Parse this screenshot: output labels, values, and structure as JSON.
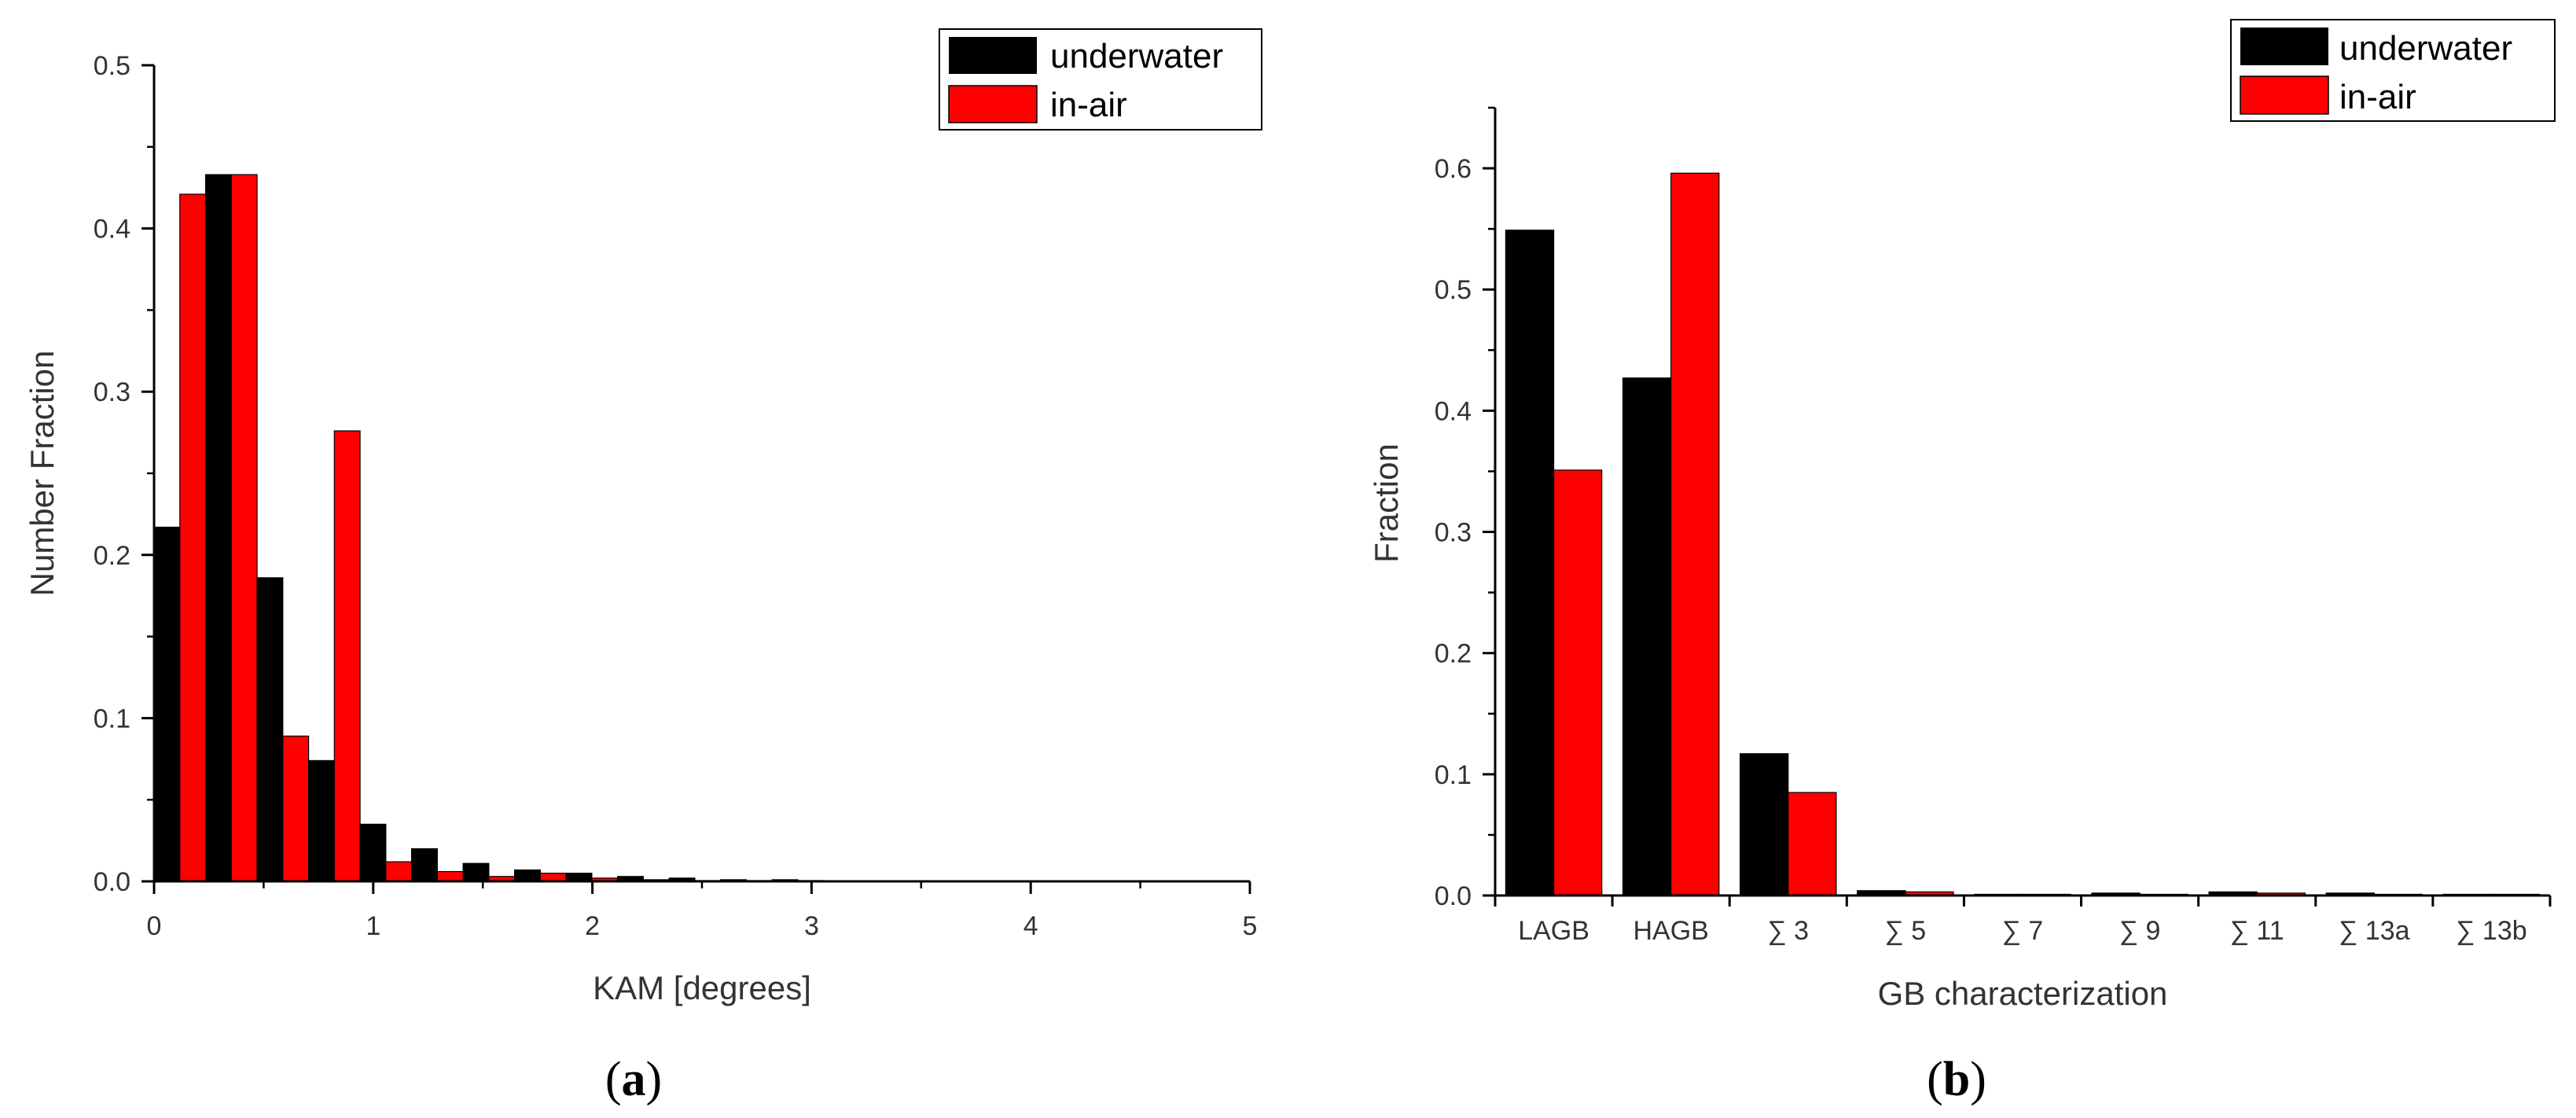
{
  "chart_data": [
    {
      "type": "bar",
      "panel_label": "a",
      "xlabel": "KAM [degrees]",
      "ylabel": "Number Fraction",
      "xlim": [
        0,
        5
      ],
      "ylim": [
        0,
        0.5
      ],
      "xticks": [
        "0",
        "1",
        "2",
        "3",
        "4",
        "5"
      ],
      "yticks": [
        "0.0",
        "0.1",
        "0.2",
        "0.3",
        "0.4",
        "0.5"
      ],
      "bin_width": 0.235,
      "x": [
        0.1175,
        0.3525,
        0.5875,
        0.8225,
        1.0575,
        1.2925,
        1.5275,
        1.7625,
        1.9975,
        2.2325,
        2.4675,
        2.7025,
        2.9375,
        3.1725,
        3.4075,
        3.6425,
        3.8775,
        4.1125,
        4.3475,
        4.5825,
        4.8175
      ],
      "series": [
        {
          "name": "underwater",
          "color": "#000000",
          "values": [
            0.217,
            0.433,
            0.186,
            0.074,
            0.035,
            0.02,
            0.011,
            0.007,
            0.005,
            0.003,
            0.002,
            0.001,
            0.001,
            0,
            0,
            0,
            0,
            0,
            0,
            0,
            0
          ]
        },
        {
          "name": "in-air",
          "color": "#ff0000",
          "values": [
            0.421,
            0.433,
            0.089,
            0.276,
            0.012,
            0.006,
            0.003,
            0.005,
            0.002,
            0.001,
            0.0005,
            0.0005,
            0.0005,
            0,
            0,
            0,
            0,
            0,
            0,
            0,
            0
          ]
        }
      ],
      "legend_position": "top-right"
    },
    {
      "type": "bar",
      "panel_label": "b",
      "xlabel": "GB characterization",
      "ylabel": "Fraction",
      "categories": [
        "LAGB",
        "HAGB",
        "∑ 3",
        "∑ 5",
        "∑ 7",
        "∑ 9",
        "∑ 11",
        "∑ 13a",
        "∑ 13b"
      ],
      "ylim": [
        0,
        0.65
      ],
      "yticks": [
        "0.0",
        "0.1",
        "0.2",
        "0.3",
        "0.4",
        "0.5",
        "0.6"
      ],
      "series": [
        {
          "name": "underwater",
          "color": "#000000",
          "values": [
            0.549,
            0.427,
            0.117,
            0.004,
            0.001,
            0.002,
            0.003,
            0.002,
            0.001
          ]
        },
        {
          "name": "in-air",
          "color": "#ff0000",
          "values": [
            0.351,
            0.596,
            0.085,
            0.003,
            0.001,
            0.001,
            0.002,
            0.001,
            0.001
          ]
        }
      ],
      "legend_position": "top-right"
    }
  ]
}
